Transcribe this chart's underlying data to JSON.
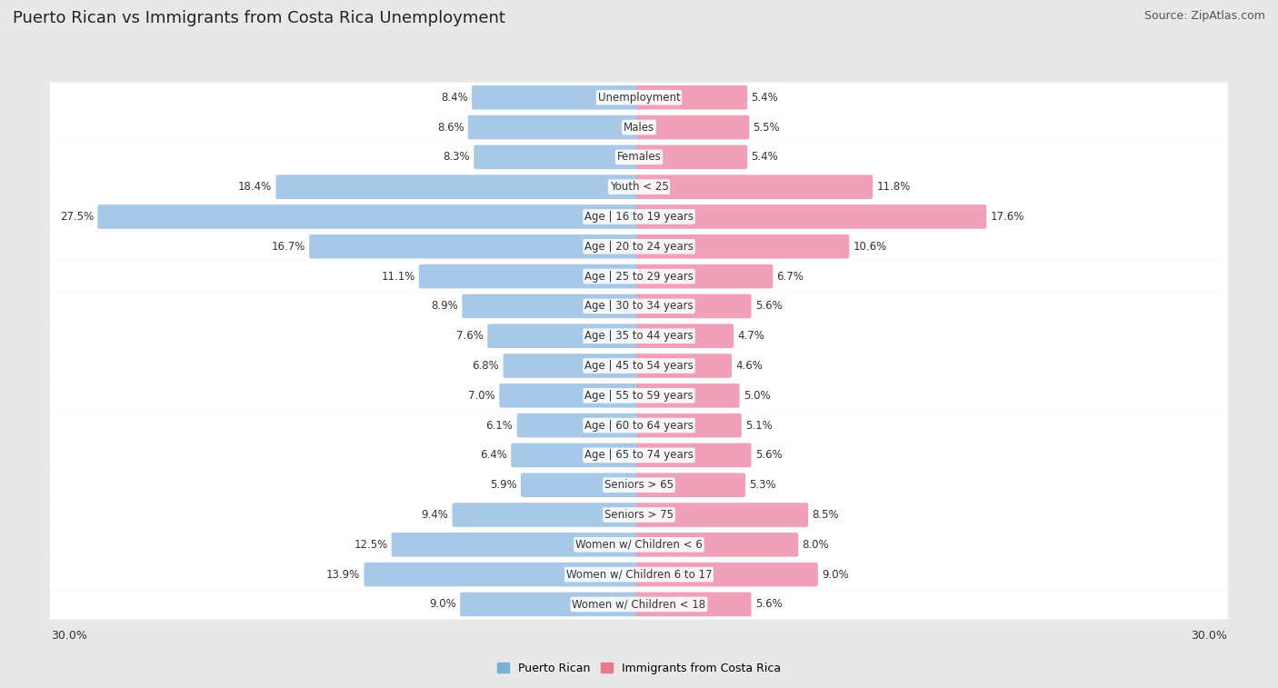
{
  "title": "Puerto Rican vs Immigrants from Costa Rica Unemployment",
  "source": "Source: ZipAtlas.com",
  "categories": [
    "Unemployment",
    "Males",
    "Females",
    "Youth < 25",
    "Age | 16 to 19 years",
    "Age | 20 to 24 years",
    "Age | 25 to 29 years",
    "Age | 30 to 34 years",
    "Age | 35 to 44 years",
    "Age | 45 to 54 years",
    "Age | 55 to 59 years",
    "Age | 60 to 64 years",
    "Age | 65 to 74 years",
    "Seniors > 65",
    "Seniors > 75",
    "Women w/ Children < 6",
    "Women w/ Children 6 to 17",
    "Women w/ Children < 18"
  ],
  "left_values": [
    8.4,
    8.6,
    8.3,
    18.4,
    27.5,
    16.7,
    11.1,
    8.9,
    7.6,
    6.8,
    7.0,
    6.1,
    6.4,
    5.9,
    9.4,
    12.5,
    13.9,
    9.0
  ],
  "right_values": [
    5.4,
    5.5,
    5.4,
    11.8,
    17.6,
    10.6,
    6.7,
    5.6,
    4.7,
    4.6,
    5.0,
    5.1,
    5.6,
    5.3,
    8.5,
    8.0,
    9.0,
    5.6
  ],
  "left_color": "#a8c8e8",
  "right_color": "#f0a0b8",
  "left_label": "Puerto Rican",
  "right_label": "Immigrants from Costa Rica",
  "bg_color": "#e8e8e8",
  "bar_bg_color": "#ffffff",
  "axis_max": 30.0,
  "legend_left_color": "#7bafd4",
  "legend_right_color": "#e8788e",
  "title_fontsize": 13,
  "source_fontsize": 9,
  "label_fontsize": 8.5,
  "value_fontsize": 8.5
}
